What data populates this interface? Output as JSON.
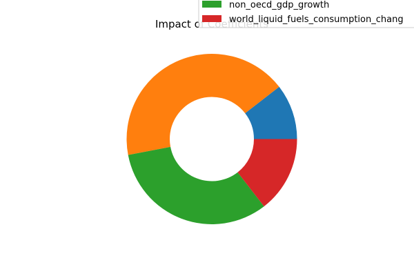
{
  "chart_data": {
    "type": "pie",
    "title": "Impact of Coefficients",
    "donut": true,
    "legend_position": "upper right",
    "slices": [
      {
        "label": "",
        "value": 10.5,
        "color": "#1f77b4"
      },
      {
        "label": "",
        "value": 42.5,
        "color": "#ff7f0e"
      },
      {
        "label": "non_oecd_gdp_growth",
        "value": 32.5,
        "color": "#2ca02c"
      },
      {
        "label": "world_liquid_fuels_consumption_chang",
        "value": 14.5,
        "color": "#d62728"
      }
    ]
  }
}
